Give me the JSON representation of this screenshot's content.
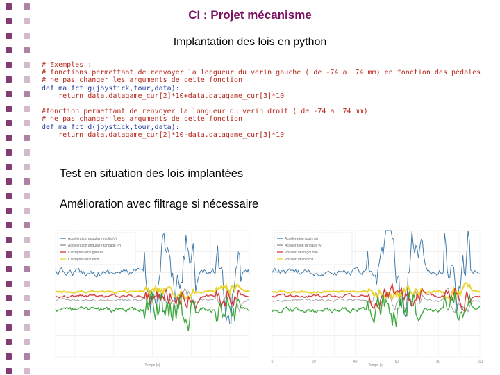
{
  "slide": {
    "title": "CI : Projet mécanisme",
    "subtitle": "Implantation des lois en python",
    "bullet1": "Test en situation des lois implantées",
    "bullet2": "Amélioration avec filtrage si nécessaire"
  },
  "code_lines": [
    {
      "cls": "c-comment",
      "text": "# Exemples :"
    },
    {
      "cls": "c-comment",
      "text": "# fonctions permettant de renvoyer la longueur du verin gauche ( de -74 a  74 mm) en fonction des pédales"
    },
    {
      "cls": "c-comment",
      "text": "# ne pas changer les arguments de cette fonction"
    },
    {
      "cls": "c-kw",
      "text": "def ma_fct_g(joystick,tour,data):"
    },
    {
      "cls": "c-ret",
      "text": "    return data.datagame_cur[2]*10+data.datagame_cur[3]*10"
    },
    {
      "cls": "c-fn",
      "text": ""
    },
    {
      "cls": "c-comment",
      "text": "#fonction permettant de renvoyer la longueur du verin droit ( de -74 a  74 mm)"
    },
    {
      "cls": "c-comment",
      "text": "# ne pas changer les arguments de cette fonction"
    },
    {
      "cls": "c-kw",
      "text": "def ma_fct_d(joystick,tour,data):"
    },
    {
      "cls": "c-ret",
      "text": "    return data.datagame_cur[2]*10-data.datagame_cur[3]*10"
    }
  ],
  "charts": {
    "left": {
      "legend": [
        "Accélération angulaire roulis (x)",
        "Accélération angulaire tangage (y)",
        "Consigne vérin gauche",
        "Consigne vérin droit"
      ],
      "colors": [
        "#2e6b9e",
        "#888888",
        "#d62728",
        "#e8d21d",
        "#2ca02c"
      ],
      "xlabel": "Temps (s)"
    },
    "right": {
      "legend": [
        "Accélération roulis (x)",
        "Accélération tangage (y)",
        "Position vérin gauche",
        "Position vérin droit"
      ],
      "colors": [
        "#2e6b9e",
        "#888888",
        "#d62728",
        "#e8d21d",
        "#2ca02c"
      ],
      "xticks": [
        "0",
        "20",
        "40",
        "60",
        "80",
        "100"
      ],
      "xlabel": "Temps (s)"
    }
  },
  "colors": {
    "title": "#7a1160",
    "sidebar_square": "#6d1a5a"
  }
}
